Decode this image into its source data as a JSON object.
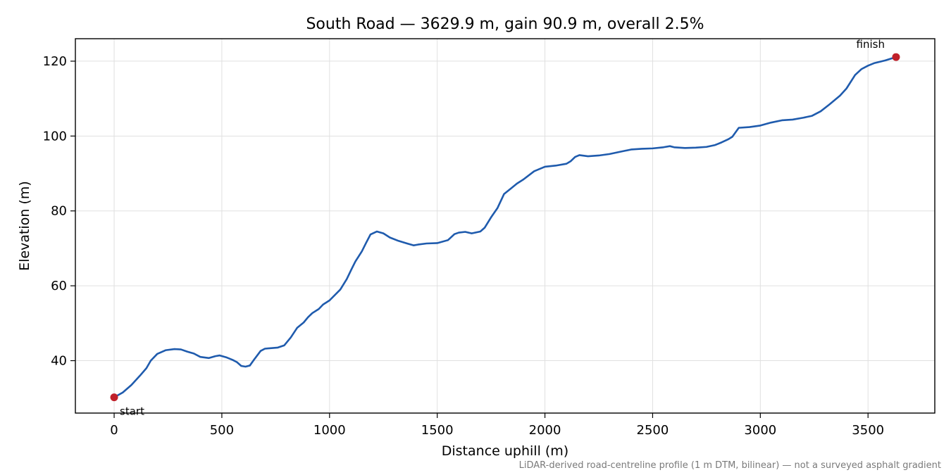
{
  "chart_data": {
    "type": "line",
    "title": "South Road — 3629.9 m, gain 90.9 m, overall 2.5%",
    "xlabel": "Distance uphill (m)",
    "ylabel": "Elevation (m)",
    "xlim": [
      -180,
      3810
    ],
    "ylim": [
      26,
      126
    ],
    "xticks": [
      0,
      500,
      1000,
      1500,
      2000,
      2500,
      3000,
      3500
    ],
    "yticks": [
      40,
      60,
      80,
      100,
      120
    ],
    "grid": true,
    "footnote": "LiDAR-derived road-centreline profile (1 m DTM, bilinear) — not a surveyed asphalt gradient",
    "colors": {
      "line": "#1f5bad",
      "markers": "#c0202a",
      "grid": "#e0e0e0",
      "footnote": "#7a7a7a"
    },
    "series": [
      {
        "x": [
          0,
          40,
          80,
          120,
          150,
          170,
          200,
          240,
          280,
          310,
          340,
          370,
          400,
          440,
          470,
          490,
          520,
          550,
          570,
          590,
          610,
          630,
          650,
          680,
          700,
          760,
          790,
          820,
          850,
          880,
          900,
          920,
          950,
          970,
          1000,
          1050,
          1080,
          1100,
          1120,
          1150,
          1170,
          1190,
          1220,
          1250,
          1280,
          1320,
          1360,
          1390,
          1410,
          1450,
          1500,
          1550,
          1580,
          1600,
          1630,
          1660,
          1700,
          1720,
          1750,
          1780,
          1810,
          1840,
          1870,
          1900,
          1950,
          2000,
          2050,
          2100,
          2120,
          2140,
          2160,
          2200,
          2250,
          2300,
          2350,
          2400,
          2450,
          2500,
          2550,
          2580,
          2600,
          2650,
          2700,
          2750,
          2790,
          2820,
          2850,
          2870,
          2900,
          2950,
          3000,
          3050,
          3100,
          3150,
          3200,
          3240,
          3280,
          3320,
          3370,
          3400,
          3440,
          3470,
          3500,
          3530,
          3580,
          3630
        ],
        "y": [
          30.2,
          31.5,
          33.5,
          36,
          38,
          40,
          41.8,
          42.8,
          43.1,
          43,
          42.4,
          41.9,
          41,
          40.7,
          41.2,
          41.4,
          40.9,
          40.2,
          39.6,
          38.6,
          38.4,
          38.7,
          40.3,
          42.6,
          43.2,
          43.5,
          44.1,
          46.2,
          48.8,
          50.2,
          51.6,
          52.7,
          53.8,
          55,
          56.1,
          59,
          61.8,
          64.2,
          66.5,
          69.2,
          71.5,
          73.7,
          74.5,
          74,
          72.9,
          72,
          71.3,
          70.8,
          71,
          71.3,
          71.4,
          72.2,
          73.8,
          74.2,
          74.4,
          74,
          74.5,
          75.5,
          78.3,
          80.8,
          84.5,
          85.9,
          87.3,
          88.4,
          90.6,
          91.8,
          92.1,
          92.6,
          93.3,
          94.4,
          94.9,
          94.6,
          94.8,
          95.2,
          95.8,
          96.4,
          96.6,
          96.7,
          97,
          97.3,
          97,
          96.8,
          96.9,
          97.1,
          97.6,
          98.3,
          99.1,
          99.8,
          102.2,
          102.4,
          102.8,
          103.6,
          104.2,
          104.4,
          104.9,
          105.4,
          106.6,
          108.4,
          110.8,
          112.7,
          116.3,
          117.9,
          118.8,
          119.5,
          120.2,
          121.1
        ]
      }
    ],
    "markers": [
      {
        "label": "start",
        "x": 0,
        "y": 30.2
      },
      {
        "label": "finish",
        "x": 3630,
        "y": 121.1
      }
    ]
  }
}
